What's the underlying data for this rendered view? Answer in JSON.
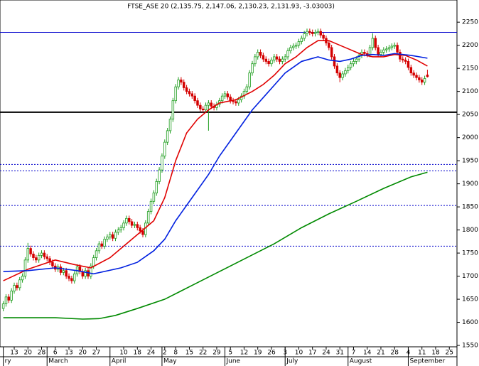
{
  "chart_data": {
    "type": "candlestick",
    "title": "FTSE_ASE 20 (2,135.75, 2,147.06, 2,130.23, 2,131.93, -3.03003)",
    "xlim": [
      -0.2,
      166.8
    ],
    "ylim": [
      1547,
      2298
    ],
    "yticks": [
      1550,
      1600,
      1650,
      1700,
      1750,
      1800,
      1850,
      1900,
      1950,
      2000,
      2050,
      2100,
      2150,
      2200,
      2250
    ],
    "xticks": [
      {
        "value": 5,
        "label": "13"
      },
      {
        "value": 10,
        "label": "20"
      },
      {
        "value": 15,
        "label": "28"
      },
      {
        "value": 20,
        "label": "6"
      },
      {
        "value": 25,
        "label": "13"
      },
      {
        "value": 30,
        "label": "20"
      },
      {
        "value": 35,
        "label": "27"
      },
      {
        "value": 45,
        "label": "10"
      },
      {
        "value": 50,
        "label": "18"
      },
      {
        "value": 55,
        "label": "24"
      },
      {
        "value": 60,
        "label": "2"
      },
      {
        "value": 64,
        "label": "8"
      },
      {
        "value": 69,
        "label": "15"
      },
      {
        "value": 74,
        "label": "22"
      },
      {
        "value": 79,
        "label": "29"
      },
      {
        "value": 84,
        "label": "5"
      },
      {
        "value": 89,
        "label": "12"
      },
      {
        "value": 94,
        "label": "19"
      },
      {
        "value": 99,
        "label": "26"
      },
      {
        "value": 104,
        "label": "3"
      },
      {
        "value": 109,
        "label": "10"
      },
      {
        "value": 114,
        "label": "17"
      },
      {
        "value": 119,
        "label": "24"
      },
      {
        "value": 124,
        "label": "31"
      },
      {
        "value": 129,
        "label": "7"
      },
      {
        "value": 134,
        "label": "14"
      },
      {
        "value": 139,
        "label": "21"
      },
      {
        "value": 144,
        "label": "28"
      },
      {
        "value": 149,
        "label": "4"
      },
      {
        "value": 154,
        "label": "11"
      },
      {
        "value": 159,
        "label": "18"
      },
      {
        "value": 164,
        "label": "25"
      }
    ],
    "month_ticks": [
      {
        "value": 1,
        "label": "ry"
      },
      {
        "value": 17,
        "label": "March"
      },
      {
        "value": 40,
        "label": "April"
      },
      {
        "value": 59,
        "label": "May"
      },
      {
        "value": 82,
        "label": "June"
      },
      {
        "value": 104,
        "label": "July"
      },
      {
        "value": 127,
        "label": "August"
      },
      {
        "value": 149,
        "label": "September"
      }
    ],
    "up_color": "#1f9e1f",
    "down_color": "#d40000",
    "x": [
      1,
      2,
      3,
      4,
      5,
      6,
      7,
      8,
      9,
      10,
      11,
      12,
      13,
      14,
      15,
      16,
      17,
      18,
      19,
      20,
      21,
      22,
      23,
      24,
      25,
      26,
      27,
      28,
      29,
      30,
      31,
      32,
      33,
      34,
      35,
      36,
      37,
      38,
      39,
      40,
      41,
      42,
      43,
      44,
      45,
      46,
      47,
      48,
      49,
      50,
      51,
      52,
      53,
      54,
      55,
      56,
      57,
      58,
      59,
      60,
      61,
      62,
      63,
      64,
      65,
      66,
      67,
      68,
      69,
      70,
      71,
      72,
      73,
      74,
      75,
      76,
      77,
      78,
      79,
      80,
      81,
      82,
      83,
      84,
      85,
      86,
      87,
      88,
      89,
      90,
      91,
      92,
      93,
      94,
      95,
      96,
      97,
      98,
      99,
      100,
      101,
      102,
      103,
      104,
      105,
      106,
      107,
      108,
      109,
      110,
      111,
      112,
      113,
      114,
      115,
      116,
      117,
      118,
      119,
      120,
      121,
      122,
      123,
      124,
      125,
      126,
      127,
      128,
      129,
      130,
      131,
      132,
      133,
      134,
      135,
      136,
      137,
      138,
      139,
      140,
      141,
      142,
      143,
      144,
      145,
      146,
      147,
      148,
      149,
      150,
      151,
      152,
      153,
      154,
      155,
      156
    ],
    "open": [
      1630,
      1640,
      1655,
      1648,
      1668,
      1680,
      1675,
      1692,
      1700,
      1735,
      1760,
      1748,
      1740,
      1735,
      1745,
      1750,
      1742,
      1738,
      1730,
      1722,
      1715,
      1720,
      1708,
      1712,
      1700,
      1695,
      1690,
      1705,
      1720,
      1710,
      1700,
      1712,
      1700,
      1722,
      1740,
      1755,
      1770,
      1765,
      1780,
      1785,
      1790,
      1782,
      1795,
      1800,
      1805,
      1815,
      1825,
      1818,
      1810,
      1812,
      1805,
      1798,
      1790,
      1815,
      1840,
      1862,
      1880,
      1905,
      1930,
      1960,
      1990,
      2015,
      2040,
      2080,
      2110,
      2125,
      2120,
      2108,
      2100,
      2095,
      2090,
      2080,
      2070,
      2062,
      2060,
      2070,
      2075,
      2068,
      2065,
      2072,
      2080,
      2090,
      2095,
      2088,
      2080,
      2078,
      2075,
      2082,
      2090,
      2100,
      2110,
      2140,
      2160,
      2175,
      2185,
      2178,
      2170,
      2165,
      2160,
      2168,
      2175,
      2170,
      2165,
      2170,
      2175,
      2188,
      2195,
      2198,
      2200,
      2208,
      2215,
      2225,
      2230,
      2228,
      2225,
      2228,
      2230,
      2222,
      2215,
      2205,
      2195,
      2175,
      2155,
      2140,
      2130,
      2138,
      2145,
      2152,
      2160,
      2165,
      2170,
      2178,
      2185,
      2182,
      2180,
      2195,
      2215,
      2195,
      2180,
      2185,
      2190,
      2192,
      2195,
      2198,
      2200,
      2185,
      2170,
      2168,
      2165,
      2152,
      2140,
      2135,
      2130,
      2125,
      2120,
      2135.75
    ],
    "high": [
      1646,
      1661,
      1661,
      1674,
      1686,
      1686,
      1698,
      1706,
      1741,
      1772,
      1766,
      1754,
      1746,
      1751,
      1756,
      1756,
      1748,
      1744,
      1736,
      1728,
      1726,
      1726,
      1718,
      1718,
      1706,
      1701,
      1711,
      1726,
      1726,
      1716,
      1718,
      1718,
      1728,
      1746,
      1761,
      1776,
      1776,
      1786,
      1791,
      1796,
      1796,
      1801,
      1806,
      1811,
      1821,
      1831,
      1831,
      1824,
      1818,
      1818,
      1811,
      1804,
      1821,
      1846,
      1868,
      1886,
      1911,
      1936,
      1966,
      1996,
      2021,
      2046,
      2086,
      2116,
      2131,
      2131,
      2126,
      2114,
      2106,
      2101,
      2096,
      2086,
      2076,
      2068,
      2076,
      2081,
      2081,
      2074,
      2078,
      2086,
      2096,
      2101,
      2101,
      2094,
      2086,
      2084,
      2088,
      2096,
      2106,
      2116,
      2146,
      2166,
      2181,
      2191,
      2191,
      2184,
      2176,
      2171,
      2174,
      2181,
      2181,
      2176,
      2176,
      2181,
      2194,
      2201,
      2204,
      2206,
      2214,
      2221,
      2231,
      2236,
      2236,
      2234,
      2234,
      2236,
      2236,
      2228,
      2221,
      2211,
      2201,
      2181,
      2161,
      2146,
      2144,
      2151,
      2158,
      2166,
      2171,
      2176,
      2184,
      2191,
      2191,
      2188,
      2201,
      2226,
      2221,
      2201,
      2191,
      2196,
      2198,
      2201,
      2204,
      2206,
      2206,
      2191,
      2176,
      2174,
      2171,
      2158,
      2146,
      2141,
      2136,
      2131,
      2134,
      2147.06
    ],
    "low": [
      1624,
      1634,
      1642,
      1642,
      1662,
      1669,
      1669,
      1686,
      1694,
      1729,
      1742,
      1734,
      1729,
      1729,
      1739,
      1736,
      1732,
      1724,
      1716,
      1709,
      1709,
      1702,
      1702,
      1694,
      1689,
      1684,
      1684,
      1699,
      1704,
      1694,
      1694,
      1694,
      1694,
      1716,
      1734,
      1749,
      1759,
      1759,
      1774,
      1779,
      1776,
      1776,
      1789,
      1794,
      1799,
      1809,
      1812,
      1804,
      1804,
      1799,
      1792,
      1784,
      1784,
      1809,
      1834,
      1856,
      1874,
      1899,
      1924,
      1954,
      1984,
      2009,
      2034,
      2074,
      2104,
      2114,
      2102,
      2094,
      2089,
      2084,
      2074,
      2064,
      2056,
      2054,
      2054,
      2015,
      2062,
      2059,
      2059,
      2066,
      2074,
      2084,
      2082,
      2074,
      2072,
      2069,
      2069,
      2076,
      2084,
      2094,
      2104,
      2134,
      2154,
      2169,
      2172,
      2164,
      2159,
      2154,
      2154,
      2162,
      2164,
      2159,
      2159,
      2164,
      2169,
      2182,
      2189,
      2192,
      2194,
      2202,
      2209,
      2219,
      2222,
      2219,
      2219,
      2222,
      2216,
      2209,
      2199,
      2189,
      2169,
      2149,
      2134,
      2120,
      2124,
      2132,
      2139,
      2146,
      2154,
      2159,
      2164,
      2172,
      2176,
      2174,
      2174,
      2189,
      2189,
      2174,
      2174,
      2179,
      2184,
      2186,
      2189,
      2192,
      2179,
      2164,
      2162,
      2159,
      2146,
      2134,
      2129,
      2124,
      2119,
      2114,
      2114,
      2130.23
    ],
    "close": [
      1640,
      1655,
      1648,
      1668,
      1680,
      1675,
      1692,
      1700,
      1735,
      1760,
      1748,
      1740,
      1735,
      1745,
      1750,
      1742,
      1738,
      1730,
      1722,
      1715,
      1720,
      1708,
      1712,
      1700,
      1695,
      1690,
      1705,
      1720,
      1710,
      1700,
      1712,
      1700,
      1722,
      1740,
      1755,
      1770,
      1765,
      1780,
      1785,
      1790,
      1782,
      1795,
      1800,
      1805,
      1815,
      1825,
      1818,
      1810,
      1812,
      1805,
      1798,
      1790,
      1815,
      1840,
      1862,
      1880,
      1905,
      1930,
      1960,
      1990,
      2015,
      2040,
      2080,
      2110,
      2125,
      2120,
      2108,
      2100,
      2095,
      2090,
      2080,
      2070,
      2062,
      2060,
      2070,
      2075,
      2068,
      2065,
      2072,
      2080,
      2090,
      2095,
      2088,
      2080,
      2078,
      2075,
      2082,
      2090,
      2100,
      2110,
      2140,
      2160,
      2175,
      2185,
      2178,
      2170,
      2165,
      2160,
      2168,
      2175,
      2170,
      2165,
      2170,
      2175,
      2188,
      2195,
      2198,
      2200,
      2208,
      2215,
      2225,
      2230,
      2228,
      2225,
      2228,
      2230,
      2222,
      2215,
      2205,
      2195,
      2175,
      2155,
      2140,
      2130,
      2138,
      2145,
      2152,
      2160,
      2165,
      2170,
      2178,
      2185,
      2182,
      2180,
      2195,
      2215,
      2195,
      2180,
      2185,
      2190,
      2192,
      2195,
      2198,
      2200,
      2185,
      2170,
      2168,
      2165,
      2152,
      2140,
      2135,
      2130,
      2125,
      2120,
      2128,
      2131.93
    ],
    "series": [
      {
        "color": "#e00000",
        "x": [
          1,
          10,
          20,
          27,
          33,
          40,
          46,
          52,
          56,
          60,
          64,
          68,
          72,
          76,
          80,
          86,
          92,
          96,
          100,
          104,
          108,
          112,
          116,
          120,
          124,
          128,
          132,
          136,
          140,
          144,
          148,
          152,
          156
        ],
        "values": [
          1690,
          1715,
          1735,
          1725,
          1718,
          1740,
          1770,
          1800,
          1820,
          1870,
          1950,
          2010,
          2040,
          2060,
          2075,
          2082,
          2100,
          2115,
          2135,
          2160,
          2175,
          2195,
          2210,
          2210,
          2200,
          2190,
          2180,
          2175,
          2175,
          2180,
          2178,
          2168,
          2155
        ]
      },
      {
        "color": "#0020e0",
        "x": [
          1,
          10,
          20,
          28,
          34,
          44,
          50,
          56,
          60,
          64,
          70,
          76,
          80,
          86,
          92,
          98,
          104,
          110,
          116,
          120,
          124,
          128,
          132,
          136,
          140,
          144,
          150,
          156
        ],
        "values": [
          1710,
          1712,
          1718,
          1712,
          1705,
          1718,
          1730,
          1755,
          1780,
          1820,
          1870,
          1920,
          1960,
          2010,
          2060,
          2100,
          2140,
          2165,
          2175,
          2168,
          2165,
          2170,
          2178,
          2180,
          2178,
          2182,
          2178,
          2172
        ]
      },
      {
        "color": "#008a00",
        "x": [
          1,
          10,
          20,
          30,
          36,
          42,
          50,
          60,
          70,
          80,
          90,
          100,
          110,
          120,
          130,
          140,
          150,
          156
        ],
        "values": [
          1610,
          1610,
          1610,
          1607,
          1608,
          1615,
          1630,
          1650,
          1680,
          1710,
          1740,
          1770,
          1805,
          1835,
          1862,
          1890,
          1915,
          1925
        ]
      }
    ],
    "hlines": [
      {
        "value": 2228,
        "color": "#0000cc",
        "style": "solid",
        "width": 1
      },
      {
        "value": 2055,
        "color": "#000000",
        "style": "solid",
        "width": 2
      },
      {
        "value": 1942,
        "color": "#0000cc",
        "style": "dotted",
        "width": 1
      },
      {
        "value": 1928,
        "color": "#0000cc",
        "style": "dotted",
        "width": 1
      },
      {
        "value": 1853,
        "color": "#0000cc",
        "style": "dotted",
        "width": 1
      },
      {
        "value": 1765,
        "color": "#0000cc",
        "style": "dotted",
        "width": 1
      }
    ]
  }
}
